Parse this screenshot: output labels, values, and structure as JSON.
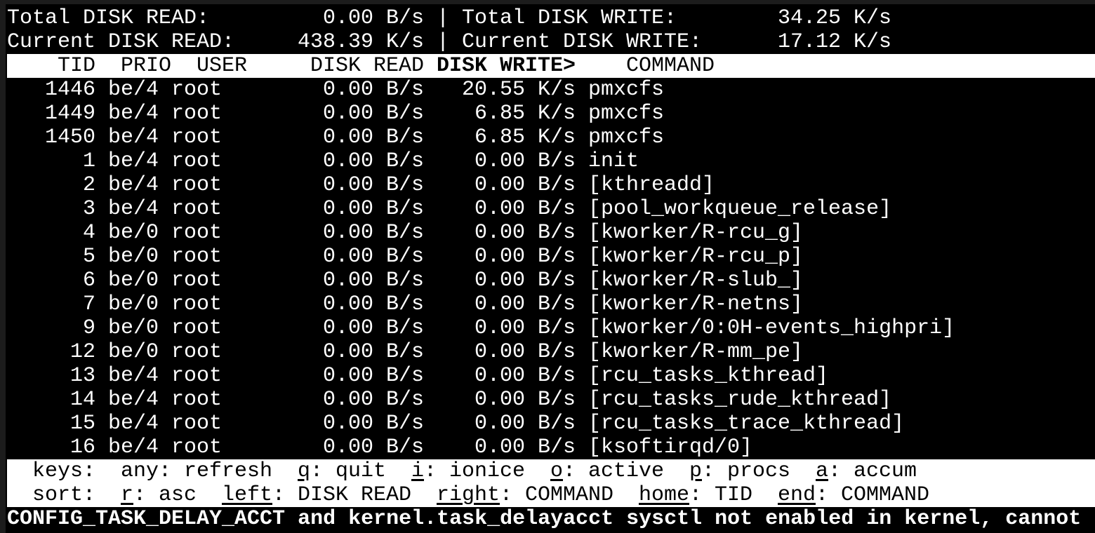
{
  "summary": {
    "total_read_label": "Total DISK READ:",
    "total_read": "0.00 B/s",
    "total_write_label": "Total DISK WRITE:",
    "total_write": "34.25 K/s",
    "current_read_label": "Current DISK READ:",
    "current_read": "438.39 K/s",
    "current_write_label": "Current DISK WRITE:",
    "current_write": "17.12 K/s",
    "separator": "|"
  },
  "columns": {
    "tid": "TID",
    "prio": "PRIO",
    "user": "USER",
    "disk_read": "DISK READ",
    "disk_write": "DISK WRITE>",
    "command": "COMMAND"
  },
  "rows": [
    {
      "tid": "1446",
      "prio": "be/4",
      "user": "root",
      "read": "0.00 B/s",
      "write": "20.55 K/s",
      "command": "pmxcfs"
    },
    {
      "tid": "1449",
      "prio": "be/4",
      "user": "root",
      "read": "0.00 B/s",
      "write": "6.85 K/s",
      "command": "pmxcfs"
    },
    {
      "tid": "1450",
      "prio": "be/4",
      "user": "root",
      "read": "0.00 B/s",
      "write": "6.85 K/s",
      "command": "pmxcfs"
    },
    {
      "tid": "1",
      "prio": "be/4",
      "user": "root",
      "read": "0.00 B/s",
      "write": "0.00 B/s",
      "command": "init"
    },
    {
      "tid": "2",
      "prio": "be/4",
      "user": "root",
      "read": "0.00 B/s",
      "write": "0.00 B/s",
      "command": "[kthreadd]"
    },
    {
      "tid": "3",
      "prio": "be/4",
      "user": "root",
      "read": "0.00 B/s",
      "write": "0.00 B/s",
      "command": "[pool_workqueue_release]"
    },
    {
      "tid": "4",
      "prio": "be/0",
      "user": "root",
      "read": "0.00 B/s",
      "write": "0.00 B/s",
      "command": "[kworker/R-rcu_g]"
    },
    {
      "tid": "5",
      "prio": "be/0",
      "user": "root",
      "read": "0.00 B/s",
      "write": "0.00 B/s",
      "command": "[kworker/R-rcu_p]"
    },
    {
      "tid": "6",
      "prio": "be/0",
      "user": "root",
      "read": "0.00 B/s",
      "write": "0.00 B/s",
      "command": "[kworker/R-slub_]"
    },
    {
      "tid": "7",
      "prio": "be/0",
      "user": "root",
      "read": "0.00 B/s",
      "write": "0.00 B/s",
      "command": "[kworker/R-netns]"
    },
    {
      "tid": "9",
      "prio": "be/0",
      "user": "root",
      "read": "0.00 B/s",
      "write": "0.00 B/s",
      "command": "[kworker/0:0H-events_highpri]"
    },
    {
      "tid": "12",
      "prio": "be/0",
      "user": "root",
      "read": "0.00 B/s",
      "write": "0.00 B/s",
      "command": "[kworker/R-mm_pe]"
    },
    {
      "tid": "13",
      "prio": "be/4",
      "user": "root",
      "read": "0.00 B/s",
      "write": "0.00 B/s",
      "command": "[rcu_tasks_kthread]"
    },
    {
      "tid": "14",
      "prio": "be/4",
      "user": "root",
      "read": "0.00 B/s",
      "write": "0.00 B/s",
      "command": "[rcu_tasks_rude_kthread]"
    },
    {
      "tid": "15",
      "prio": "be/4",
      "user": "root",
      "read": "0.00 B/s",
      "write": "0.00 B/s",
      "command": "[rcu_tasks_trace_kthread]"
    },
    {
      "tid": "16",
      "prio": "be/4",
      "user": "root",
      "read": "0.00 B/s",
      "write": "0.00 B/s",
      "command": "[ksoftirqd/0]"
    }
  ],
  "keys": {
    "label": "keys:",
    "items": [
      {
        "key": "any",
        "desc": ": refresh",
        "underline": false
      },
      {
        "key": "q",
        "desc": ": quit",
        "underline": true
      },
      {
        "key": "i",
        "desc": ": ionice",
        "underline": true
      },
      {
        "key": "o",
        "desc": ": active",
        "underline": true
      },
      {
        "key": "p",
        "desc": ": procs",
        "underline": true
      },
      {
        "key": "a",
        "desc": ": accum",
        "underline": true
      }
    ]
  },
  "sort": {
    "label": "sort:",
    "items": [
      {
        "key": "r",
        "desc": ": asc",
        "underline": true
      },
      {
        "key": "left",
        "desc": ": DISK READ",
        "underline": true
      },
      {
        "key": "right",
        "desc": ": COMMAND",
        "underline": true
      },
      {
        "key": "home",
        "desc": ": TID",
        "underline": true
      },
      {
        "key": "end",
        "desc": ": COMMAND",
        "underline": true
      }
    ]
  },
  "warning": "CONFIG_TASK_DELAY_ACCT and kernel.task_delayacct sysctl not enabled in kernel, cannot",
  "colors": {
    "background": "#000000",
    "foreground": "#ffffff",
    "inverse_bg": "#ffffff"
  }
}
